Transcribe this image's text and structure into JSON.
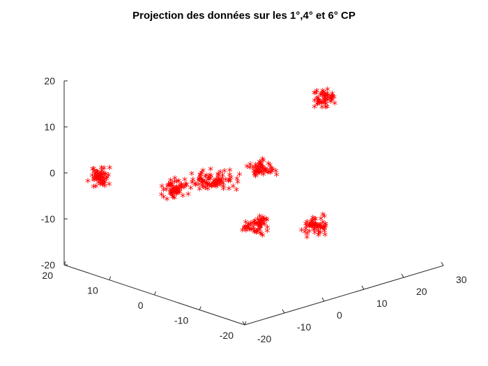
{
  "chart_data": {
    "type": "scatter",
    "title": "Projection des données sur les 1°,4° et 6° CP",
    "marker": "*",
    "marker_color": "#ff0000",
    "axes": {
      "y_axis_vertical_ticks": [
        20,
        10,
        0,
        -10,
        -20
      ],
      "left_depth_ticks": [
        20,
        10,
        0,
        -10,
        -20
      ],
      "right_depth_ticks": [
        -20,
        -10,
        0,
        10,
        20,
        30
      ]
    },
    "clusters": [
      {
        "center": [
          -20,
          -2.5,
          12
        ],
        "points": 60
      },
      {
        "center": [
          -8,
          -4,
          3
        ],
        "points": 60
      },
      {
        "center": [
          -1,
          -2,
          -2
        ],
        "points": 90
      },
      {
        "center": [
          5,
          0.5,
          -5
        ],
        "points": 55
      },
      {
        "center": [
          10,
          -12,
          -12
        ],
        "points": 60
      },
      {
        "center": [
          22,
          -12,
          -2
        ],
        "points": 60
      },
      {
        "center": [
          20,
          15,
          10
        ],
        "points": 55
      }
    ]
  }
}
